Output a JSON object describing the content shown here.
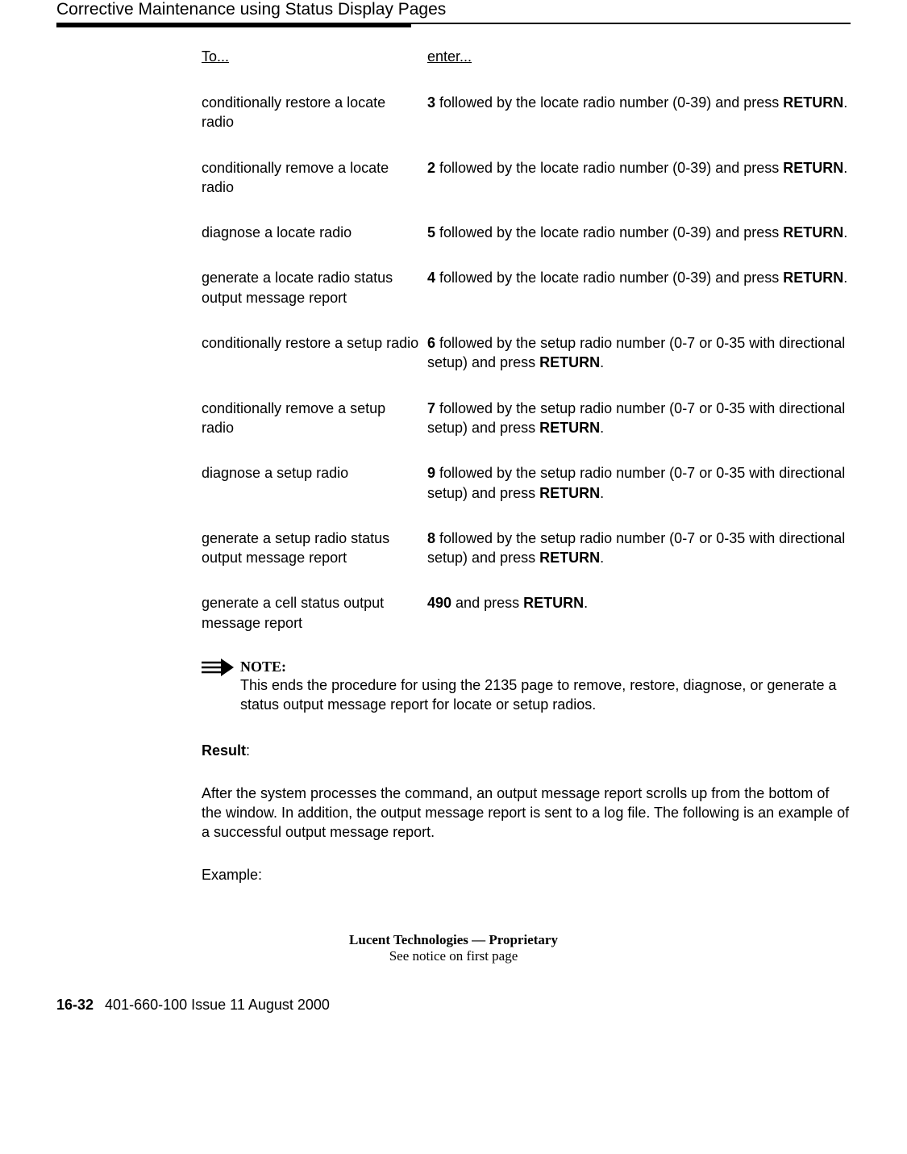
{
  "header": {
    "title": "Corrective Maintenance using Status Display Pages"
  },
  "table": {
    "col1_header": "To...",
    "col2_header": "enter...",
    "rows": [
      {
        "left": "conditionally restore a locate radio",
        "right_pre": "",
        "right_bold1": "3",
        "right_mid": " followed by the locate radio number (0-39) and press ",
        "right_bold2": "RETURN",
        "right_post": "."
      },
      {
        "left": "conditionally remove a locate radio",
        "right_pre": "",
        "right_bold1": "2",
        "right_mid": " followed by the locate radio number (0-39) and press ",
        "right_bold2": "RETURN",
        "right_post": "."
      },
      {
        "left": "diagnose a locate radio",
        "right_pre": "",
        "right_bold1": "5",
        "right_mid": " followed by the locate radio number (0-39) and press ",
        "right_bold2": "RETURN",
        "right_post": "."
      },
      {
        "left": "generate a locate radio status output message report",
        "right_pre": "",
        "right_bold1": "4",
        "right_mid": " followed by the locate radio number (0-39) and press ",
        "right_bold2": "RETURN",
        "right_post": "."
      },
      {
        "left": "conditionally restore a setup radio",
        "right_pre": "",
        "right_bold1": "6",
        "right_mid": " followed by the setup radio number (0-7 or 0-35 with directional setup) and press ",
        "right_bold2": "RETURN",
        "right_post": "."
      },
      {
        "left": "conditionally remove a setup radio",
        "right_pre": "",
        "right_bold1": "7",
        "right_mid": " followed by the setup radio number (0-7 or 0-35 with directional setup) and press ",
        "right_bold2": "RETURN",
        "right_post": "."
      },
      {
        "left": "diagnose a setup radio",
        "right_pre": "",
        "right_bold1": "9",
        "right_mid": " followed by the setup radio number (0-7 or 0-35 with directional setup) and press ",
        "right_bold2": "RETURN",
        "right_post": "."
      },
      {
        "left": "generate a setup radio status output message report",
        "right_pre": "",
        "right_bold1": "8",
        "right_mid": " followed by the setup radio number (0-7 or 0-35 with directional setup) and press ",
        "right_bold2": "RETURN",
        "right_post": "."
      },
      {
        "left": "generate a cell status output message report",
        "right_pre": "",
        "right_bold1": "490",
        "right_mid": " and press ",
        "right_bold2": "RETURN",
        "right_post": "."
      }
    ]
  },
  "note": {
    "label": "NOTE:",
    "text": "This ends the procedure for using the 2135 page to remove, restore, diagnose, or generate a status output message report for locate or setup radios."
  },
  "result": {
    "label_bold": "Result",
    "label_colon": ":",
    "para": "After the system processes the command, an output message report scrolls up from the bottom of the window. In addition, the output message report is sent to a log file. The following is an example of a successful output message report.",
    "example": "Example:"
  },
  "footer": {
    "proprietary1": "Lucent Technologies — Proprietary",
    "proprietary2": "See notice on first page",
    "pagenum": "16-32",
    "docinfo": "401-660-100 Issue 11    August 2000"
  }
}
